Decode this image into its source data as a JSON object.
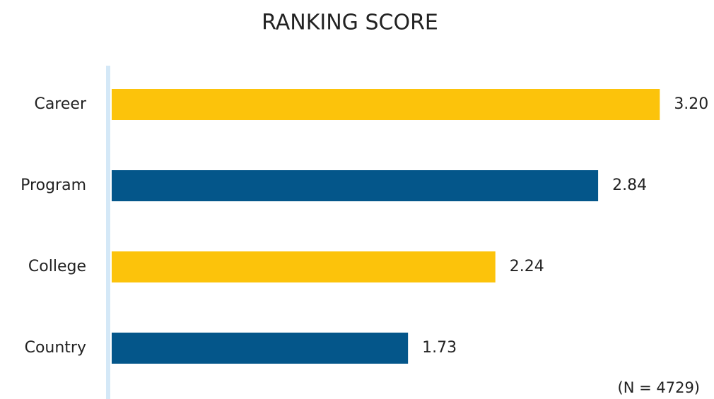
{
  "chart_data": {
    "type": "bar",
    "orientation": "horizontal",
    "title": "RANKING SCORE",
    "categories": [
      "Career",
      "Program",
      "College",
      "Country"
    ],
    "values": [
      3.2,
      2.84,
      2.24,
      1.73
    ],
    "value_labels": [
      "3.20",
      "2.84",
      "2.24",
      "1.73"
    ],
    "colors": [
      "#fcc30b",
      "#04568a",
      "#fcc30b",
      "#04568a"
    ],
    "xlim": [
      0,
      3.5
    ],
    "annotation": "(N = 4729)"
  }
}
